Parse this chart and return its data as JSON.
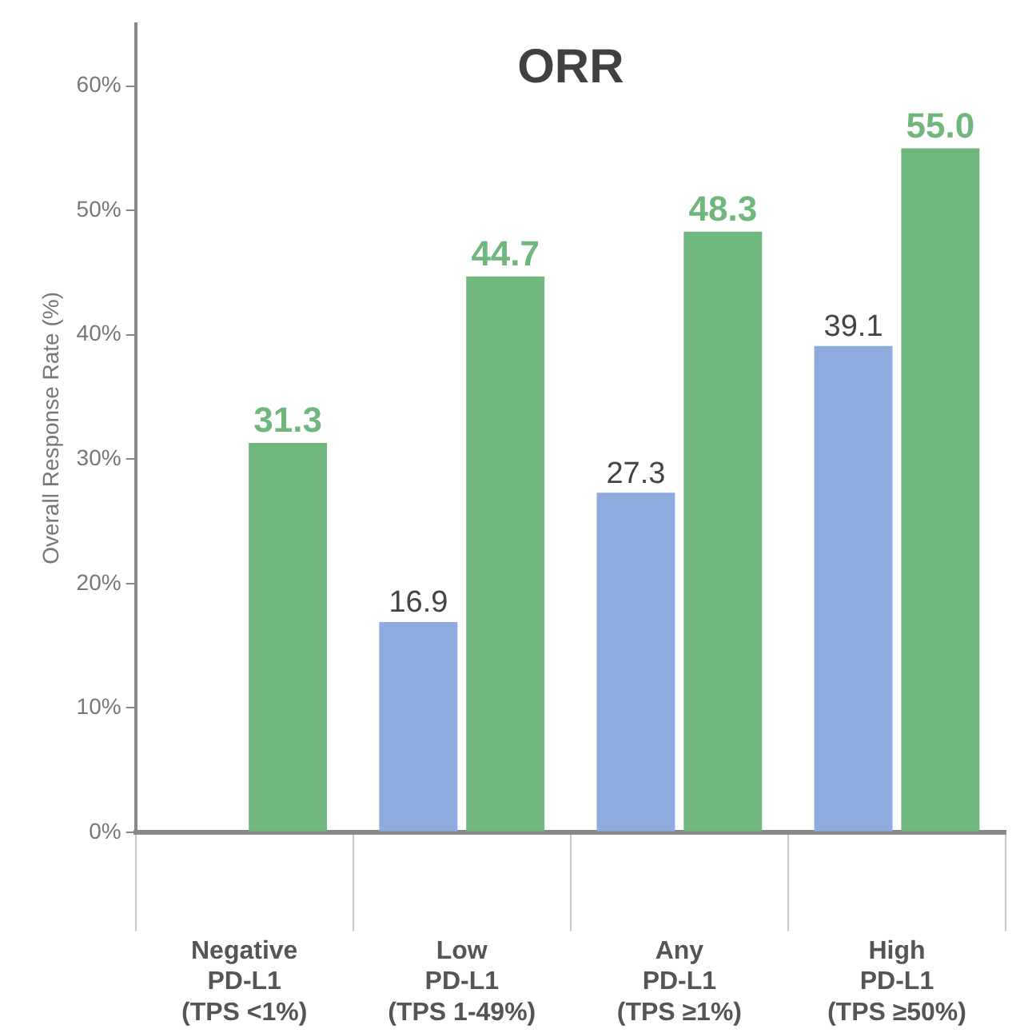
{
  "chart_data": {
    "type": "bar",
    "title": "ORR",
    "ylabel": "Overall Response Rate (%)",
    "categories": [
      "Negative\nPD-L1\n(TPS <1%)",
      "Low\nPD-L1\n(TPS 1-49%)",
      "Any\nPD-L1\n(TPS ≥1%)",
      "High\nPD-L1\n(TPS ≥50%)"
    ],
    "series": [
      {
        "color": "#8faadc",
        "values": [
          null,
          16.9,
          27.3,
          39.1
        ],
        "value_labels": [
          null,
          "16.9",
          "27.3",
          "39.1"
        ]
      },
      {
        "color": "#70b77e",
        "values": [
          31.3,
          44.7,
          48.3,
          55.0
        ],
        "value_labels": [
          "31.3",
          "44.7",
          "48.3",
          "55.0"
        ]
      }
    ],
    "ylim": [
      0,
      65
    ],
    "yticks": [
      {
        "value": 0,
        "label": "0%"
      },
      {
        "value": 10,
        "label": "10%"
      },
      {
        "value": 20,
        "label": "20%"
      },
      {
        "value": 30,
        "label": "30%"
      },
      {
        "value": 40,
        "label": "40%"
      },
      {
        "value": 50,
        "label": "50%"
      },
      {
        "value": 60,
        "label": "60%"
      }
    ],
    "grid": false,
    "legend": false
  }
}
